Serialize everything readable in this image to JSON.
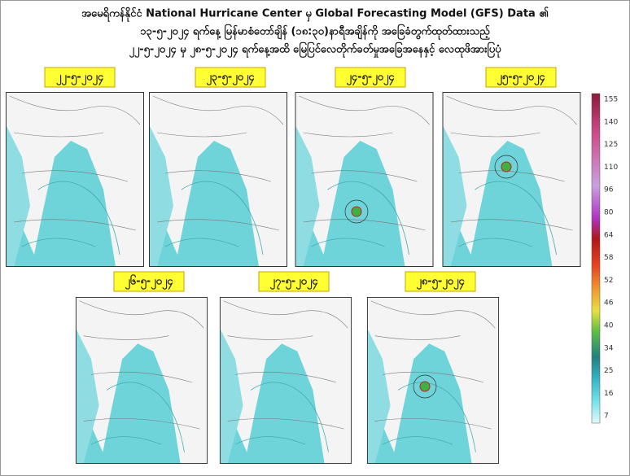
{
  "header": {
    "lines": [
      "အမေရိကန်နိုင်ငံ National Hurricane Center မှ Global Forecasting Model (GFS) Data ၏",
      "၁၃-၅-၂၀၂၄ ရက်နေ့ မြန်မာစံတော်ချိန် (၁၈:၃၀)နာရီအချိန်ကို  အခြေခံတွက်ထုတ်ထားသည့်",
      "၂၂-၅-၂၀၂၄ မှ ၂၈-၅-၂၀၂၄ ရက်နေ့အထိ မြေပြင်လေတိုက်ခတ်မှုအခြေအနေနှင့်  လေထုဖိအားပြပုံ"
    ]
  },
  "panels": [
    {
      "date": "၂၂-၅-၂၀၂၄"
    },
    {
      "date": "၂၃-၅-၂၀၂၄"
    },
    {
      "date": "၂၄-၅-၂၀၂၄"
    },
    {
      "date": "၂၅-၅-၂၀၂၄"
    },
    {
      "date": "၂၆-၅-၂၀၂၄"
    },
    {
      "date": "၂၇-၅-၂၀၂၄"
    },
    {
      "date": "၂၈-၅-၂၀၂၄"
    }
  ],
  "colorbar": {
    "labels": [
      "155",
      "140",
      "125",
      "110",
      "96",
      "80",
      "64",
      "58",
      "52",
      "46",
      "40",
      "34",
      "25",
      "16",
      "7"
    ]
  }
}
